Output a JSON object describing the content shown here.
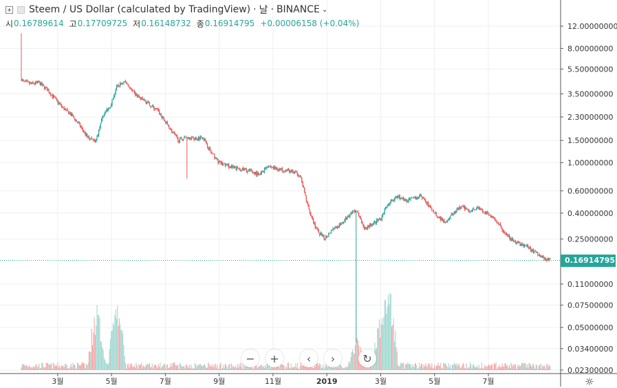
{
  "header": {
    "title": "Steem / US Dollar (calculated by TradingView)",
    "sep": "·",
    "interval": "날",
    "exchange": "BINANCE",
    "ohlc": [
      {
        "label": "시",
        "value": "0.16789614"
      },
      {
        "label": "고",
        "value": "0.17709725"
      },
      {
        "label": "저",
        "value": "0.16148732"
      },
      {
        "label": "종",
        "value": "0.16914795"
      }
    ],
    "change": "+0.00006158 (+0.04%)"
  },
  "last_price": "0.16914795",
  "colors": {
    "up": "#26a69a",
    "down": "#ef5350",
    "up_vol": "#9fd8d2",
    "down_vol": "#f5a7a5",
    "grid": "#eceff2"
  },
  "nav": {
    "zoom_out": "−",
    "zoom_in": "+",
    "back": "‹",
    "forward": "›",
    "reset": "↻"
  },
  "chart_data": {
    "type": "candlestick",
    "title": "Steem / US Dollar (calculated by TradingView)",
    "scale": "log",
    "y_ticks": [
      "12.00000000",
      "8.00000000",
      "5.50000000",
      "3.50000000",
      "2.30000000",
      "1.50000000",
      "1.00000000",
      "0.60000000",
      "0.40000000",
      "0.25000000",
      "0.11000000",
      "0.07500000",
      "0.05000000",
      "0.03400000",
      "0.02300000"
    ],
    "y_tick_values": [
      12,
      8,
      5.5,
      3.5,
      2.3,
      1.5,
      1.0,
      0.6,
      0.4,
      0.25,
      0.11,
      0.075,
      0.05,
      0.034,
      0.023
    ],
    "x_ticks": [
      "3월",
      "5월",
      "7월",
      "9월",
      "11월",
      "2019",
      "3월",
      "5월",
      "7월"
    ],
    "x_tick_months": [
      2,
      4,
      6,
      8,
      10,
      12,
      14,
      16,
      18
    ],
    "ylim": [
      0.02,
      14
    ],
    "xlim_months": [
      0.2,
      20.5
    ],
    "price_path_months": [
      0.65,
      0.7,
      1.0,
      1.3,
      1.6,
      1.9,
      2.2,
      2.5,
      2.8,
      3.1,
      3.4,
      3.7,
      3.95,
      4.2,
      4.5,
      4.8,
      5.1,
      5.4,
      5.7,
      6.0,
      6.3,
      6.5,
      6.8,
      7.1,
      7.4,
      7.7,
      8.0,
      8.3,
      8.6,
      8.9,
      9.2,
      9.5,
      9.8,
      10.1,
      10.4,
      10.7,
      11.0,
      11.3,
      11.6,
      11.9,
      12.2,
      12.5,
      12.8,
      13.1,
      13.4,
      13.7,
      14.0,
      14.3,
      14.6,
      14.9,
      15.2,
      15.5,
      15.8,
      16.1,
      16.4,
      16.7,
      17.0,
      17.3,
      17.6,
      17.9,
      18.2,
      18.5,
      18.8,
      19.1,
      19.4,
      19.7,
      20.0,
      20.3
    ],
    "price_path_close": [
      4.6,
      4.4,
      4.2,
      4.3,
      3.8,
      3.2,
      2.7,
      2.4,
      2.0,
      1.6,
      1.45,
      2.4,
      2.8,
      4.0,
      4.4,
      3.6,
      3.2,
      2.9,
      2.6,
      2.1,
      1.7,
      1.5,
      1.6,
      1.55,
      1.6,
      1.2,
      1.0,
      0.95,
      0.9,
      0.88,
      0.85,
      0.8,
      0.95,
      0.9,
      0.88,
      0.85,
      0.8,
      0.45,
      0.3,
      0.25,
      0.3,
      0.32,
      0.38,
      0.42,
      0.3,
      0.33,
      0.36,
      0.48,
      0.55,
      0.5,
      0.52,
      0.55,
      0.45,
      0.38,
      0.34,
      0.4,
      0.45,
      0.42,
      0.44,
      0.4,
      0.37,
      0.3,
      0.25,
      0.23,
      0.22,
      0.2,
      0.18,
      0.17
    ],
    "spikes": [
      {
        "month": 0.65,
        "high": 10.5
      },
      {
        "month": 6.8,
        "low": 0.75
      },
      {
        "month": 13.1,
        "low": 0.038
      }
    ],
    "volume_peaks": [
      {
        "month": 3.45,
        "value": 0.08
      },
      {
        "month": 4.2,
        "value": 0.085
      },
      {
        "month": 13.1,
        "value": 0.045
      },
      {
        "month": 14.0,
        "value": 0.065
      },
      {
        "month": 14.2,
        "value": 0.1
      },
      {
        "month": 14.3,
        "value": 0.115
      }
    ]
  }
}
